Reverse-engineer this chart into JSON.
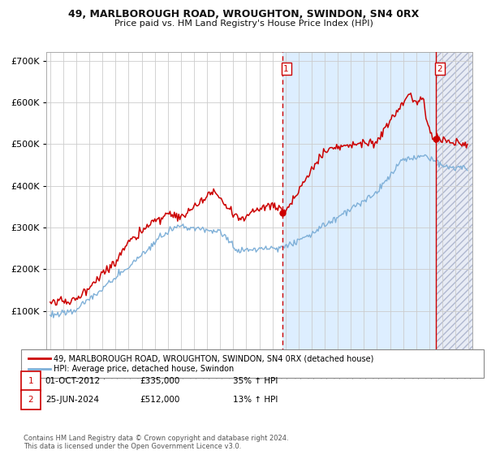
{
  "title": "49, MARLBOROUGH ROAD, WROUGHTON, SWINDON, SN4 0RX",
  "subtitle": "Price paid vs. HM Land Registry's House Price Index (HPI)",
  "legend_line1": "49, MARLBOROUGH ROAD, WROUGHTON, SWINDON, SN4 0RX (detached house)",
  "legend_line2": "HPI: Average price, detached house, Swindon",
  "annotation1_date": "01-OCT-2012",
  "annotation1_price": "£335,000",
  "annotation1_hpi": "35% ↑ HPI",
  "annotation2_date": "25-JUN-2024",
  "annotation2_price": "£512,000",
  "annotation2_hpi": "13% ↑ HPI",
  "copyright_text": "Contains HM Land Registry data © Crown copyright and database right 2024.\nThis data is licensed under the Open Government Licence v3.0.",
  "red_color": "#cc0000",
  "blue_color": "#7fb0d8",
  "background_color": "#ffffff",
  "grid_color": "#cccccc",
  "shaded_region_color": "#ddeeff",
  "ylim": [
    0,
    720000
  ],
  "yticks": [
    0,
    100000,
    200000,
    300000,
    400000,
    500000,
    600000,
    700000
  ],
  "marker1_x": 2012.75,
  "marker1_y": 335000,
  "marker2_x": 2024.5,
  "marker2_y": 512000,
  "vline1_x": 2012.75,
  "vline2_x": 2024.5,
  "xmin": 1994.7,
  "xmax": 2027.3,
  "xticks": [
    1995,
    1996,
    1997,
    1998,
    1999,
    2000,
    2001,
    2002,
    2003,
    2004,
    2005,
    2006,
    2007,
    2008,
    2009,
    2010,
    2011,
    2012,
    2013,
    2014,
    2015,
    2016,
    2017,
    2018,
    2019,
    2020,
    2021,
    2022,
    2023,
    2024,
    2025,
    2026,
    2027
  ]
}
